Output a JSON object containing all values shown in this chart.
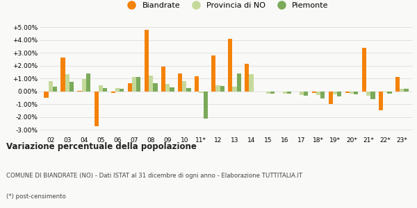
{
  "categories": [
    "02",
    "03",
    "04",
    "05",
    "06",
    "07",
    "08",
    "09",
    "10",
    "11*",
    "12",
    "13",
    "14",
    "15",
    "16",
    "17",
    "18*",
    "19*",
    "20*",
    "21*",
    "22*",
    "23*"
  ],
  "biandrate": [
    -0.5,
    2.65,
    0.05,
    -2.7,
    -0.1,
    0.65,
    4.8,
    1.95,
    1.4,
    1.15,
    2.8,
    4.1,
    2.15,
    0.0,
    0.0,
    0.0,
    -0.1,
    -1.0,
    -0.1,
    3.4,
    -1.45,
    1.1
  ],
  "provincia_no": [
    0.8,
    1.35,
    0.95,
    0.45,
    0.25,
    1.1,
    1.25,
    0.6,
    0.8,
    -0.1,
    0.45,
    0.35,
    1.35,
    -0.2,
    -0.2,
    -0.3,
    -0.3,
    -0.25,
    -0.2,
    -0.35,
    -0.05,
    0.2
  ],
  "piemonte": [
    0.35,
    0.75,
    1.4,
    0.25,
    0.2,
    1.1,
    0.65,
    0.3,
    0.25,
    -2.1,
    0.4,
    1.4,
    0.0,
    -0.2,
    -0.2,
    -0.35,
    -0.55,
    -0.4,
    -0.25,
    -0.6,
    -0.2,
    0.2
  ],
  "color_biandrate": "#f4820a",
  "color_provincia": "#c5d99a",
  "color_piemonte": "#7aaa5a",
  "label1": "Biandrate",
  "label2": "Provincia di NO",
  "label3": "Piemonte",
  "ylim": [
    -3.5,
    5.5
  ],
  "yticks": [
    -3.0,
    -2.0,
    -1.0,
    0.0,
    1.0,
    2.0,
    3.0,
    4.0,
    5.0
  ],
  "background_color": "#f9f9f7",
  "grid_color": "#dddddd",
  "title": "Variazione percentuale della popolazione",
  "footnote1": "COMUNE DI BIANDRATE (NO) - Dati ISTAT al 31 dicembre di ogni anno - Elaborazione TUTTITALIA.IT",
  "footnote2": "(*) post-censimento"
}
